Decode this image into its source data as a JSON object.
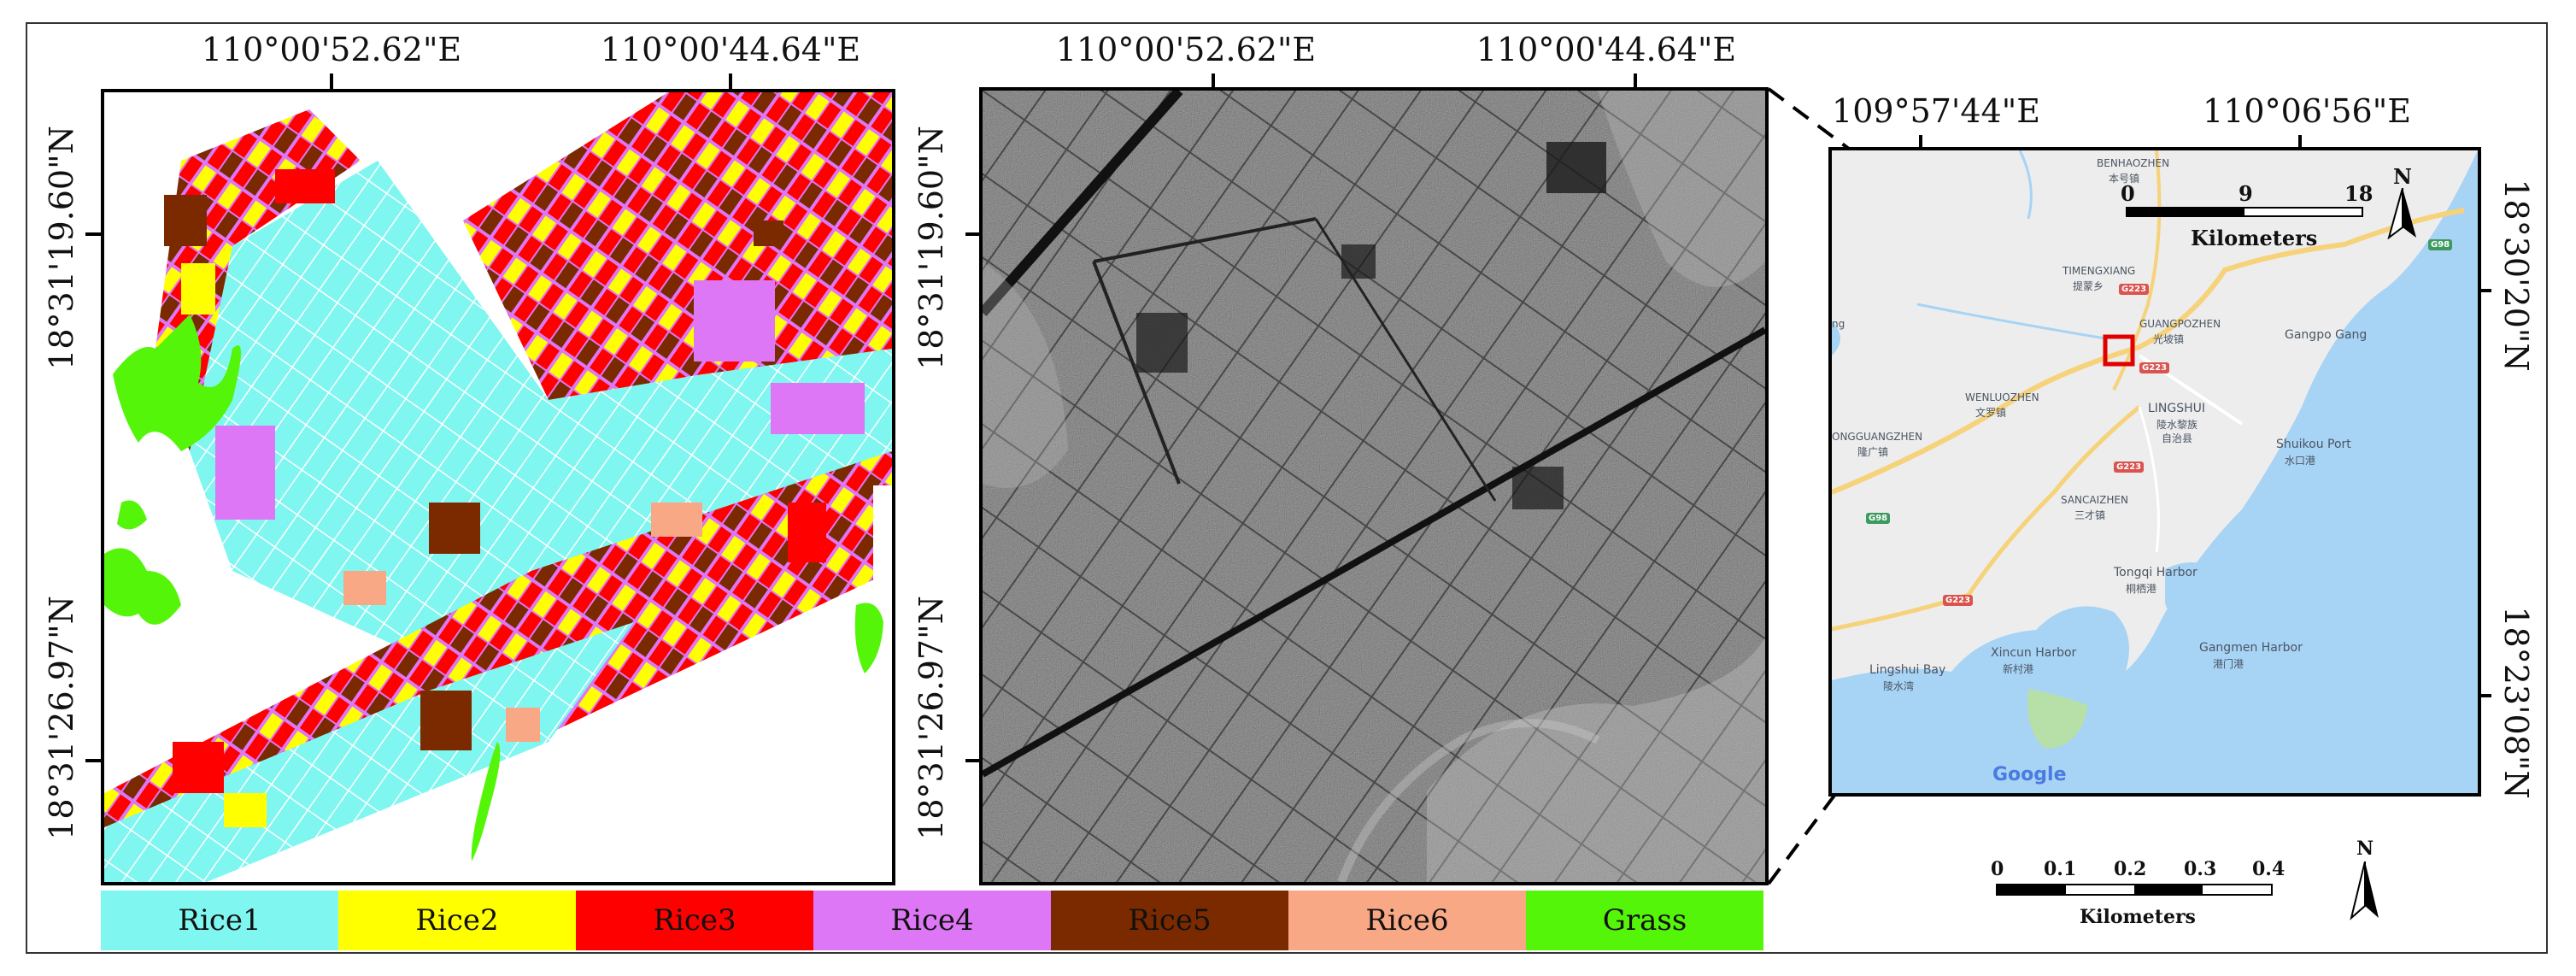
{
  "left_panel": {
    "top_coords": [
      "110°00'52.62\"E",
      "110°00'44.64\"E"
    ],
    "left_coords": [
      "18°31'19.60\"N",
      "18°31'26.97\"N"
    ]
  },
  "middle_panel": {
    "top_coords": [
      "110°00'52.62\"E",
      "110°00'44.64\"E"
    ],
    "left_coords": [
      "18°31'19.60\"N",
      "18°31'26.97\"N"
    ]
  },
  "right_panel": {
    "top_coords": [
      "109°57'44\"E",
      "110°06'56\"E"
    ],
    "right_coords": [
      "18°30'20\"N",
      "18°23'08\"N"
    ],
    "scale": {
      "ticks": [
        "0",
        "9",
        "18"
      ],
      "unit": "Kilometers"
    },
    "north": "N",
    "logo": "Google",
    "labels": {
      "benhaozhen": "BENHAOZHEN",
      "benhaozhen_cn": "本号镇",
      "timengxiang": "TIMENGXIANG",
      "timengxiang_cn": "提蒙乡",
      "guangpozhen": "GUANGPOZHEN",
      "guangpozhen_cn": "光坡镇",
      "gangpo": "Gangpo Gang",
      "wenluozhen": "WENLUOZHEN",
      "wenluozhen_cn": "文罗镇",
      "lingshui": "LINGSHUI",
      "lingshui_cn1": "陵水黎族",
      "lingshui_cn2": "自治县",
      "longguang": "ONGGUANGZHEN",
      "longguang_cn": "隆广镇",
      "shuikou": "Shuikou Port",
      "shuikou_cn": "水口港",
      "sancaizhen": "SANCAIZHEN",
      "sancaizhen_cn": "三才镇",
      "tongqi": "Tongqi Harbor",
      "tongqi_cn": "桐栖港",
      "xincun": "Xincun Harbor",
      "xincun_cn": "新村港",
      "lingshuibay": "Lingshui Bay",
      "lingshuibay_cn": "陵水湾",
      "gangmen": "Gangmen Harbor",
      "gangmen_cn": "港门港",
      "ng": "ng",
      "shields": [
        "G223",
        "G223",
        "G223",
        "G223",
        "G98",
        "G98"
      ]
    }
  },
  "scale_bottom": {
    "ticks": [
      "0",
      "0.1",
      "0.2",
      "0.3",
      "0.4"
    ],
    "unit": "Kilometers"
  },
  "north_bottom": "N",
  "legend": [
    {
      "label": "Rice1",
      "color": "#7ff6f0"
    },
    {
      "label": "Rice2",
      "color": "#ffff00"
    },
    {
      "label": "Rice3",
      "color": "#ff0000"
    },
    {
      "label": "Rice4",
      "color": "#dd77f5"
    },
    {
      "label": "Rice5",
      "color": "#7b2a00"
    },
    {
      "label": "Rice6",
      "color": "#f9a886"
    },
    {
      "label": "Grass",
      "color": "#55f50a"
    }
  ]
}
